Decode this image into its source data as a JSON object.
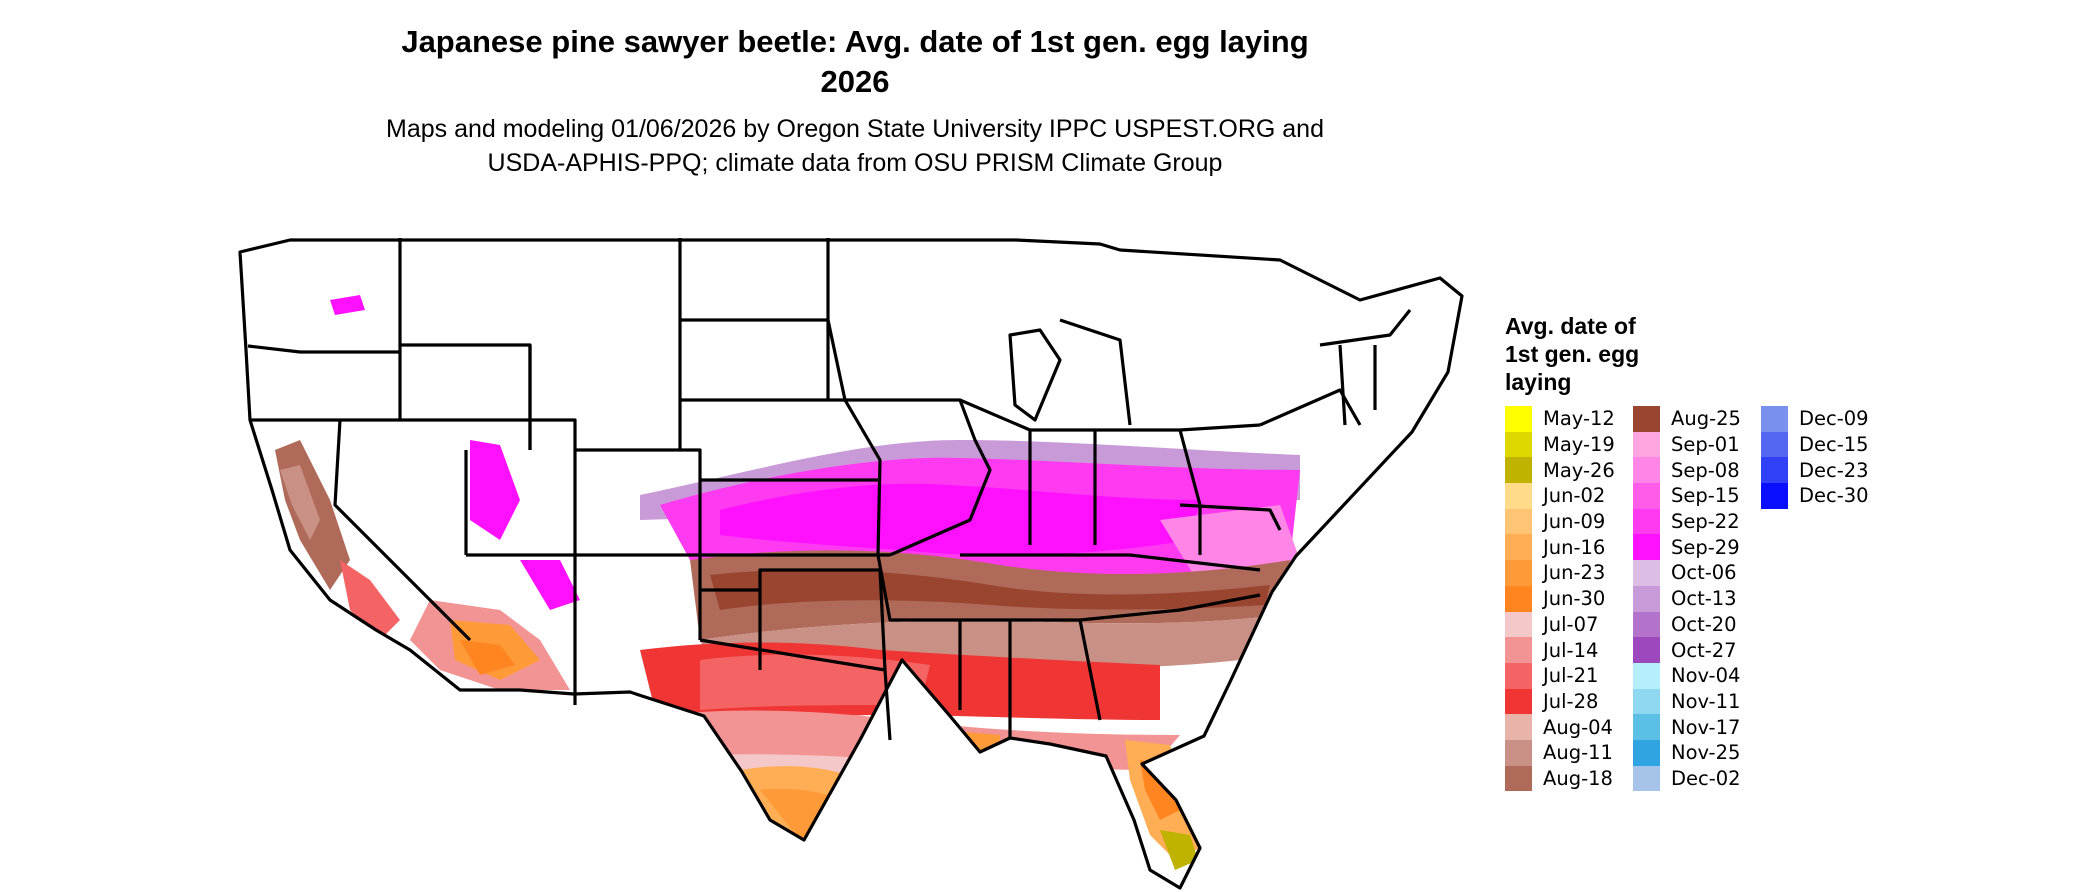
{
  "header": {
    "title_line1": "Japanese pine sawyer beetle: Avg. date of 1st gen. egg laying",
    "title_line2": "2026",
    "subtitle_line1": "Maps and modeling 01/06/2026 by Oregon State University IPPC USPEST.ORG and",
    "subtitle_line2": "USDA-APHIS-PPQ; climate data from OSU PRISM Climate Group"
  },
  "legend": {
    "title_line1": "Avg. date of",
    "title_line2": "1st gen. egg",
    "title_line3": "laying",
    "columns": [
      [
        {
          "label": "May-12",
          "color": "#FFFF00"
        },
        {
          "label": "May-19",
          "color": "#DDD800"
        },
        {
          "label": "May-26",
          "color": "#BFB300"
        },
        {
          "label": "Jun-02",
          "color": "#FFDB8A"
        },
        {
          "label": "Jun-09",
          "color": "#FFC575"
        },
        {
          "label": "Jun-16",
          "color": "#FFAE55"
        },
        {
          "label": "Jun-23",
          "color": "#FF9A38"
        },
        {
          "label": "Jun-30",
          "color": "#FF8520"
        },
        {
          "label": "Jul-07",
          "color": "#F4C8C8"
        },
        {
          "label": "Jul-14",
          "color": "#F29494"
        },
        {
          "label": "Jul-21",
          "color": "#F46464"
        },
        {
          "label": "Jul-28",
          "color": "#F03535"
        },
        {
          "label": "Aug-04",
          "color": "#E8B4AA"
        },
        {
          "label": "Aug-11",
          "color": "#C99185"
        },
        {
          "label": "Aug-18",
          "color": "#B06A5A"
        }
      ],
      [
        {
          "label": "Aug-25",
          "color": "#9A4530"
        },
        {
          "label": "Sep-01",
          "color": "#FFA6E0"
        },
        {
          "label": "Sep-08",
          "color": "#FF86E6"
        },
        {
          "label": "Sep-15",
          "color": "#FF5CEA"
        },
        {
          "label": "Sep-22",
          "color": "#FF3AF0"
        },
        {
          "label": "Sep-29",
          "color": "#FF10FF"
        },
        {
          "label": "Oct-06",
          "color": "#DDBCE6"
        },
        {
          "label": "Oct-13",
          "color": "#C99AD8"
        },
        {
          "label": "Oct-20",
          "color": "#B372CC"
        },
        {
          "label": "Oct-27",
          "color": "#9E48BE"
        },
        {
          "label": "Nov-04",
          "color": "#B7EEFB"
        },
        {
          "label": "Nov-11",
          "color": "#8FD8F1"
        },
        {
          "label": "Nov-17",
          "color": "#5BBFE6"
        },
        {
          "label": "Nov-25",
          "color": "#2FA4E0"
        },
        {
          "label": "Dec-02",
          "color": "#A6C3EA"
        }
      ],
      [
        {
          "label": "Dec-09",
          "color": "#7A90EE"
        },
        {
          "label": "Dec-15",
          "color": "#5566F3"
        },
        {
          "label": "Dec-23",
          "color": "#3040F6"
        },
        {
          "label": "Dec-30",
          "color": "#0A10FF"
        }
      ]
    ]
  }
}
